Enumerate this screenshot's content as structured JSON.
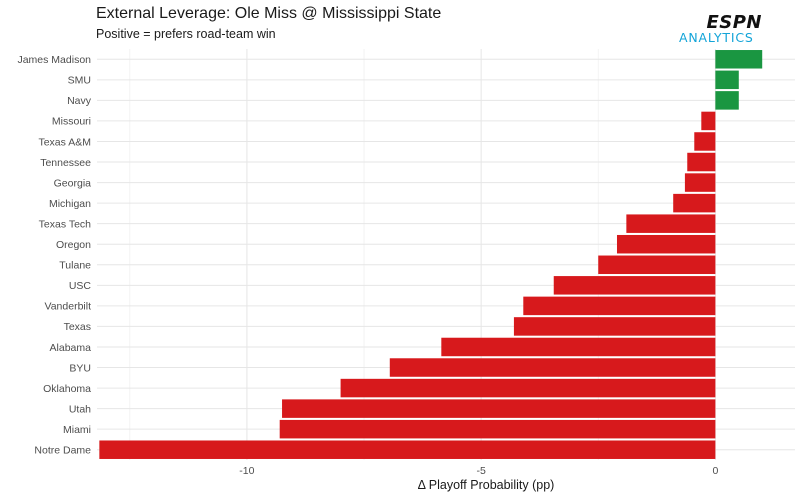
{
  "title": "External Leverage: Ole Miss @ Mississippi State",
  "subtitle": "Positive = prefers road-team win",
  "logo": {
    "wordmark": "ESPN",
    "tagline": "ANALYTICS"
  },
  "colors": {
    "positive": "#1a9641",
    "negative": "#d7191c",
    "grid": "#e6e6e6",
    "logo_accent": "#13a4d8"
  },
  "chart_data": {
    "type": "bar",
    "orientation": "horizontal",
    "xlabel": "Δ Playoff Probability (pp)",
    "ylabel": "",
    "xlim": [
      -13.2,
      1.7
    ],
    "xticks": [
      -10,
      -5,
      0
    ],
    "grid": true,
    "categories": [
      "James Madison",
      "SMU",
      "Navy",
      "Missouri",
      "Texas A&M",
      "Tennessee",
      "Georgia",
      "Michigan",
      "Texas Tech",
      "Oregon",
      "Tulane",
      "USC",
      "Vanderbilt",
      "Texas",
      "Alabama",
      "BYU",
      "Oklahoma",
      "Utah",
      "Miami",
      "Notre Dame"
    ],
    "values": [
      1.0,
      0.5,
      0.5,
      -0.3,
      -0.45,
      -0.6,
      -0.65,
      -0.9,
      -1.9,
      -2.1,
      -2.5,
      -3.45,
      -4.1,
      -4.3,
      -5.85,
      -6.95,
      -8.0,
      -9.25,
      -9.3,
      -13.15
    ]
  }
}
